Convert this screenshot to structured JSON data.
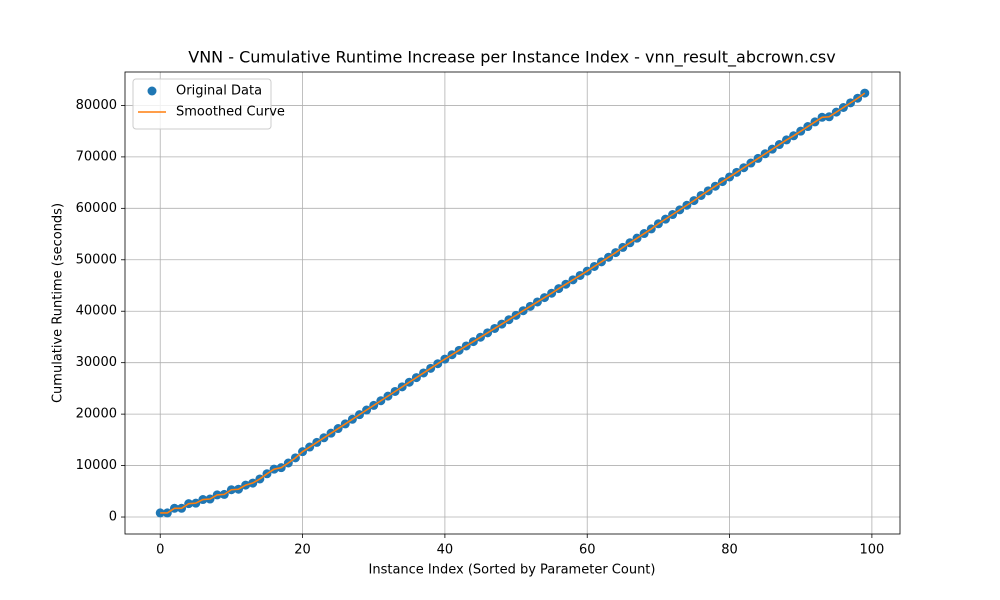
{
  "chart_data": {
    "type": "scatter",
    "title": "VNN - Cumulative Runtime Increase per Instance Index - vnn_result_abcrown.csv",
    "x_label": "Instance Index (Sorted by Parameter Count)",
    "y_label": "Cumulative Runtime (seconds)",
    "x": [
      0,
      1,
      2,
      3,
      4,
      5,
      6,
      7,
      8,
      9,
      10,
      11,
      12,
      13,
      14,
      15,
      16,
      17,
      18,
      19,
      20,
      21,
      22,
      23,
      24,
      25,
      26,
      27,
      28,
      29,
      30,
      31,
      32,
      33,
      34,
      35,
      36,
      37,
      38,
      39,
      40,
      41,
      42,
      43,
      44,
      45,
      46,
      47,
      48,
      49,
      50,
      51,
      52,
      53,
      54,
      55,
      56,
      57,
      58,
      59,
      60,
      61,
      62,
      63,
      64,
      65,
      66,
      67,
      68,
      69,
      70,
      71,
      72,
      73,
      74,
      75,
      76,
      77,
      78,
      79,
      80,
      81,
      82,
      83,
      84,
      85,
      86,
      87,
      88,
      89,
      90,
      91,
      92,
      93,
      94,
      95,
      96,
      97,
      98,
      99
    ],
    "series": [
      {
        "name": "Original Data",
        "color": "#1f77b4",
        "style": "marker",
        "values": [
          800,
          800,
          1700,
          1700,
          2600,
          2700,
          3400,
          3500,
          4300,
          4400,
          5300,
          5400,
          6200,
          6600,
          7400,
          8400,
          9300,
          9600,
          10500,
          11500,
          12700,
          13600,
          14500,
          15400,
          16300,
          17200,
          18100,
          19000,
          19900,
          20800,
          21700,
          22600,
          23500,
          24400,
          25300,
          26200,
          27100,
          28000,
          28900,
          29800,
          30700,
          31550,
          32400,
          33250,
          34100,
          34950,
          35800,
          36650,
          37500,
          38350,
          39200,
          40100,
          40950,
          41800,
          42650,
          43500,
          44400,
          45250,
          46100,
          46950,
          47800,
          48700,
          49600,
          50500,
          51400,
          52400,
          53300,
          54200,
          55100,
          56000,
          57000,
          57900,
          58800,
          59700,
          60600,
          61500,
          62500,
          63400,
          64300,
          65200,
          66100,
          67000,
          67900,
          68800,
          69700,
          70600,
          71500,
          72400,
          73300,
          74100,
          75000,
          75900,
          76800,
          77700,
          77800,
          78700,
          79600,
          80500,
          81400,
          82400
        ]
      },
      {
        "name": "Smoothed Curve",
        "color": "#ff7f0e",
        "style": "line",
        "values": [
          800,
          800,
          1700,
          1700,
          2600,
          2700,
          3400,
          3500,
          4300,
          4400,
          5300,
          5400,
          6200,
          6600,
          7400,
          8400,
          9300,
          9600,
          10500,
          11500,
          12700,
          13600,
          14500,
          15400,
          16300,
          17200,
          18100,
          19000,
          19900,
          20800,
          21700,
          22600,
          23500,
          24400,
          25300,
          26200,
          27100,
          28000,
          28900,
          29800,
          30700,
          31550,
          32400,
          33250,
          34100,
          34950,
          35800,
          36650,
          37500,
          38350,
          39200,
          40100,
          40950,
          41800,
          42650,
          43500,
          44400,
          45250,
          46100,
          46950,
          47800,
          48700,
          49600,
          50500,
          51400,
          52400,
          53300,
          54200,
          55100,
          56000,
          57000,
          57900,
          58800,
          59700,
          60600,
          61500,
          62500,
          63400,
          64300,
          65200,
          66100,
          67000,
          67900,
          68800,
          69700,
          70600,
          71500,
          72400,
          73300,
          74100,
          75000,
          75900,
          76800,
          77700,
          77800,
          78700,
          79600,
          80500,
          81400,
          82400
        ]
      }
    ],
    "xlim": [
      -4.95,
      103.95
    ],
    "ylim": [
      -3300,
      86500
    ],
    "xticks": [
      0,
      20,
      40,
      60,
      80,
      100
    ],
    "yticks": [
      0,
      10000,
      20000,
      30000,
      40000,
      50000,
      60000,
      70000,
      80000
    ],
    "grid": true,
    "legend": "upper left"
  }
}
